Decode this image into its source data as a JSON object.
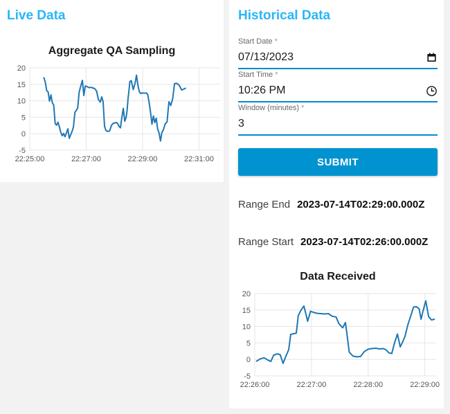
{
  "colors": {
    "accent": "#29b6f6",
    "underline": "#0288d1",
    "submit": "#0093d0",
    "line": "#1f77b4",
    "grid": "#e6e6e6",
    "tick": "#555555"
  },
  "live_panel": {
    "title": "Live Data"
  },
  "historical_panel": {
    "title": "Historical Data",
    "fields": [
      {
        "label": "Start Date",
        "required_marker": "*",
        "value": "07/13/2023",
        "icon": "calendar-icon"
      },
      {
        "label": "Start Time",
        "required_marker": "*",
        "value": "10:26 PM",
        "icon": "clock-icon"
      },
      {
        "label": "Window (minutes)",
        "required_marker": "*",
        "value": "3",
        "icon": null
      }
    ],
    "submit_label": "SUBMIT",
    "results": [
      {
        "label": "Range End",
        "value": "2023-07-14T02:29:00.000Z"
      },
      {
        "label": "Range Start",
        "value": "2023-07-14T02:26:00.000Z"
      }
    ]
  },
  "chart_data": [
    {
      "type": "line",
      "title": "Aggregate QA Sampling",
      "xlabel": "",
      "ylabel": "",
      "grid": true,
      "legend": "none",
      "ylim": [
        -5,
        20
      ],
      "yticks": [
        -5,
        0,
        5,
        10,
        15,
        20
      ],
      "xlim": [
        0,
        405
      ],
      "x_unit": "seconds after 22:25:00",
      "xticks": [
        0,
        120,
        240,
        360
      ],
      "xtick_labels": [
        "22:25:00",
        "22:27:00",
        "22:29:00",
        "22:31:00"
      ],
      "points": [
        [
          30,
          17
        ],
        [
          33,
          15.7
        ],
        [
          36,
          13.1
        ],
        [
          39,
          12.7
        ],
        [
          42,
          9.9
        ],
        [
          45,
          11.8
        ],
        [
          48,
          9.4
        ],
        [
          51,
          8.7
        ],
        [
          54,
          3.1
        ],
        [
          57,
          2.6
        ],
        [
          60,
          3.5
        ],
        [
          63,
          2.1
        ],
        [
          66,
          0.4
        ],
        [
          69,
          -0.6
        ],
        [
          72,
          0.1
        ],
        [
          75,
          -0.9
        ],
        [
          78,
          0.3
        ],
        [
          81,
          1.5
        ],
        [
          84,
          -1.4
        ],
        [
          87,
          -0.3
        ],
        [
          90,
          0.7
        ],
        [
          93,
          2.1
        ],
        [
          96,
          6.5
        ],
        [
          99,
          7.1
        ],
        [
          102,
          7.9
        ],
        [
          105,
          12.6
        ],
        [
          108,
          14.2
        ],
        [
          112,
          16.2
        ],
        [
          115,
          11.6
        ],
        [
          118,
          14.5
        ],
        [
          122,
          14.3
        ],
        [
          126,
          14
        ],
        [
          130,
          14.1
        ],
        [
          134,
          13.9
        ],
        [
          138,
          13.7
        ],
        [
          142,
          13
        ],
        [
          146,
          10.4
        ],
        [
          150,
          9.6
        ],
        [
          153,
          11.2
        ],
        [
          156,
          9.8
        ],
        [
          159,
          2.3
        ],
        [
          162,
          1
        ],
        [
          166,
          0.7
        ],
        [
          170,
          0.9
        ],
        [
          174,
          2.6
        ],
        [
          178,
          3.2
        ],
        [
          181,
          3.3
        ],
        [
          184,
          3.4
        ],
        [
          187,
          3.1
        ],
        [
          190,
          2.2
        ],
        [
          193,
          1.8
        ],
        [
          196,
          5.1
        ],
        [
          199,
          7.7
        ],
        [
          202,
          3.8
        ],
        [
          205,
          5
        ],
        [
          207,
          7.1
        ],
        [
          209,
          10.5
        ],
        [
          211,
          13.1
        ],
        [
          213,
          15.9
        ],
        [
          216,
          16.1
        ],
        [
          220,
          13.4
        ],
        [
          224,
          15.3
        ],
        [
          227,
          17.8
        ],
        [
          230,
          14.8
        ],
        [
          233,
          12.8
        ],
        [
          236,
          12.2
        ],
        [
          240,
          12.4
        ],
        [
          244,
          12.3
        ],
        [
          248,
          12.4
        ],
        [
          251,
          11.9
        ],
        [
          254,
          9.4
        ],
        [
          257,
          6.4
        ],
        [
          260,
          2.9
        ],
        [
          263,
          5.4
        ],
        [
          266,
          3.4
        ],
        [
          269,
          4.7
        ],
        [
          272,
          1.4
        ],
        [
          275,
          0.3
        ],
        [
          278,
          -2.2
        ],
        [
          281,
          0.4
        ],
        [
          284,
          1.1
        ],
        [
          288,
          3
        ],
        [
          292,
          3.6
        ],
        [
          296,
          9.7
        ],
        [
          300,
          8.6
        ],
        [
          304,
          10.6
        ],
        [
          308,
          15.2
        ],
        [
          313,
          15.3
        ],
        [
          318,
          14.7
        ],
        [
          323,
          13.3
        ],
        [
          327,
          13.5
        ],
        [
          331,
          13.8
        ]
      ]
    },
    {
      "type": "line",
      "title": "Data Received",
      "xlabel": "",
      "ylabel": "",
      "grid": true,
      "legend": "none",
      "ylim": [
        -5,
        20
      ],
      "yticks": [
        -5,
        0,
        5,
        10,
        15,
        20
      ],
      "xlim": [
        0,
        192
      ],
      "x_unit": "seconds after 22:26:00",
      "xticks": [
        0,
        60,
        120,
        180
      ],
      "xtick_labels": [
        "22:26:00",
        "22:27:00",
        "22:28:00",
        "22:29:00"
      ],
      "points": [
        [
          2,
          -0.5
        ],
        [
          6,
          0.2
        ],
        [
          10,
          0.5
        ],
        [
          14,
          -0.2
        ],
        [
          17,
          -0.6
        ],
        [
          20,
          1.3
        ],
        [
          24,
          1.7
        ],
        [
          27,
          1.4
        ],
        [
          30,
          -1.2
        ],
        [
          33,
          1
        ],
        [
          36,
          3
        ],
        [
          38,
          7.6
        ],
        [
          41,
          7.8
        ],
        [
          44,
          8
        ],
        [
          46,
          13.3
        ],
        [
          49,
          15
        ],
        [
          52,
          16.2
        ],
        [
          56,
          11.6
        ],
        [
          59,
          14.6
        ],
        [
          62,
          14.3
        ],
        [
          66,
          14
        ],
        [
          70,
          13.9
        ],
        [
          74,
          13.8
        ],
        [
          78,
          13.9
        ],
        [
          82,
          13.1
        ],
        [
          86,
          12.9
        ],
        [
          89,
          10.9
        ],
        [
          93,
          9.6
        ],
        [
          96,
          11.2
        ],
        [
          100,
          2.2
        ],
        [
          104,
          1
        ],
        [
          108,
          0.8
        ],
        [
          112,
          0.9
        ],
        [
          116,
          2.4
        ],
        [
          120,
          3.1
        ],
        [
          124,
          3.3
        ],
        [
          128,
          3.4
        ],
        [
          132,
          3.2
        ],
        [
          136,
          3.3
        ],
        [
          139,
          2.9
        ],
        [
          142,
          2
        ],
        [
          145,
          1.8
        ],
        [
          148,
          5.1
        ],
        [
          151,
          7.7
        ],
        [
          154,
          3.8
        ],
        [
          156,
          5
        ],
        [
          159,
          7
        ],
        [
          162,
          10.5
        ],
        [
          165,
          13.1
        ],
        [
          168,
          15.9
        ],
        [
          171,
          16
        ],
        [
          174,
          15.4
        ],
        [
          176,
          12.2
        ],
        [
          178,
          14.6
        ],
        [
          181,
          17.8
        ],
        [
          184,
          13
        ],
        [
          187,
          12
        ],
        [
          190,
          12.2
        ]
      ]
    }
  ]
}
